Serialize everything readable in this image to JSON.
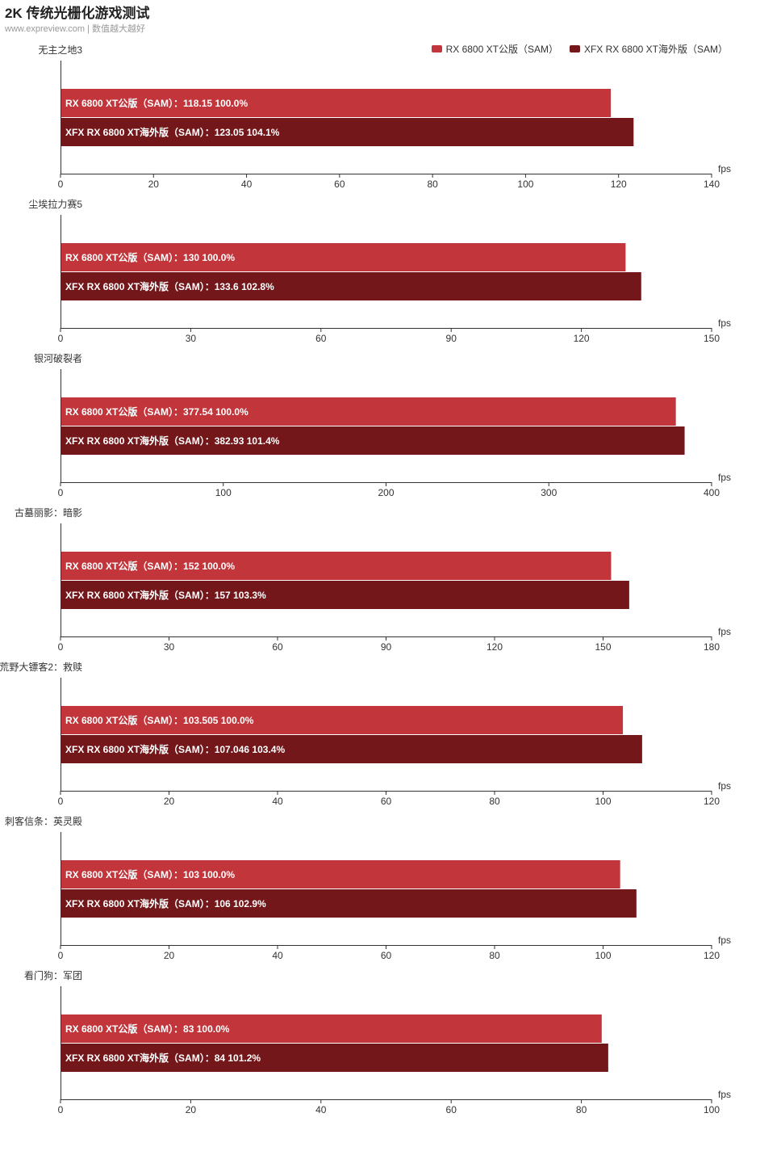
{
  "title": "2K 传统光栅化游戏测试",
  "subtitle": "www.expreview.com | 数值越大越好",
  "colors": {
    "series0": "#c1353b",
    "series1": "#73171a"
  },
  "chart_data": {
    "type": "bar",
    "unit": "fps",
    "legend_position": "top-right",
    "series_names": [
      "RX 6800 XT公版（SAM）",
      "XFX RX 6800 XT海外版（SAM）"
    ],
    "charts": [
      {
        "game": "无主之地3",
        "xlim": [
          0,
          140
        ],
        "ticks": [
          0,
          20,
          40,
          60,
          80,
          100,
          120,
          140
        ],
        "bars": [
          {
            "label": "RX 6800 XT公版（SAM）",
            "value": 118.15,
            "value_text": "118.15",
            "pct": "100.0%"
          },
          {
            "label": "XFX RX 6800 XT海外版（SAM）",
            "value": 123.05,
            "value_text": "123.05",
            "pct": "104.1%"
          }
        ]
      },
      {
        "game": "尘埃拉力赛5",
        "xlim": [
          0,
          150
        ],
        "ticks": [
          0,
          30,
          60,
          90,
          120,
          150
        ],
        "bars": [
          {
            "label": "RX 6800 XT公版（SAM）",
            "value": 130,
            "value_text": "130",
            "pct": "100.0%"
          },
          {
            "label": "XFX RX 6800 XT海外版（SAM）",
            "value": 133.6,
            "value_text": "133.6",
            "pct": "102.8%"
          }
        ]
      },
      {
        "game": "银河破裂者",
        "xlim": [
          0,
          400
        ],
        "ticks": [
          0,
          100,
          200,
          300,
          400
        ],
        "bars": [
          {
            "label": "RX 6800 XT公版（SAM）",
            "value": 377.54,
            "value_text": "377.54",
            "pct": "100.0%"
          },
          {
            "label": "XFX RX 6800 XT海外版（SAM）",
            "value": 382.93,
            "value_text": "382.93",
            "pct": "101.4%"
          }
        ]
      },
      {
        "game": "古墓丽影：暗影",
        "xlim": [
          0,
          180
        ],
        "ticks": [
          0,
          30,
          60,
          90,
          120,
          150,
          180
        ],
        "bars": [
          {
            "label": "RX 6800 XT公版（SAM）",
            "value": 152,
            "value_text": "152",
            "pct": "100.0%"
          },
          {
            "label": "XFX RX 6800 XT海外版（SAM）",
            "value": 157,
            "value_text": "157",
            "pct": "103.3%"
          }
        ]
      },
      {
        "game": "荒野大镖客2：救赎",
        "xlim": [
          0,
          120
        ],
        "ticks": [
          0,
          20,
          40,
          60,
          80,
          100,
          120
        ],
        "bars": [
          {
            "label": "RX 6800 XT公版（SAM）",
            "value": 103.505,
            "value_text": "103.505",
            "pct": "100.0%"
          },
          {
            "label": "XFX RX 6800 XT海外版（SAM）",
            "value": 107.046,
            "value_text": "107.046",
            "pct": "103.4%"
          }
        ]
      },
      {
        "game": "刺客信条：英灵殿",
        "xlim": [
          0,
          120
        ],
        "ticks": [
          0,
          20,
          40,
          60,
          80,
          100,
          120
        ],
        "bars": [
          {
            "label": "RX 6800 XT公版（SAM）",
            "value": 103,
            "value_text": "103",
            "pct": "100.0%"
          },
          {
            "label": "XFX RX 6800 XT海外版（SAM）",
            "value": 106,
            "value_text": "106",
            "pct": "102.9%"
          }
        ]
      },
      {
        "game": "看门狗：军团",
        "xlim": [
          0,
          100
        ],
        "ticks": [
          0,
          20,
          40,
          60,
          80,
          100
        ],
        "bars": [
          {
            "label": "RX 6800 XT公版（SAM）",
            "value": 83,
            "value_text": "83",
            "pct": "100.0%"
          },
          {
            "label": "XFX RX 6800 XT海外版（SAM）",
            "value": 84,
            "value_text": "84",
            "pct": "101.2%"
          }
        ]
      }
    ]
  }
}
